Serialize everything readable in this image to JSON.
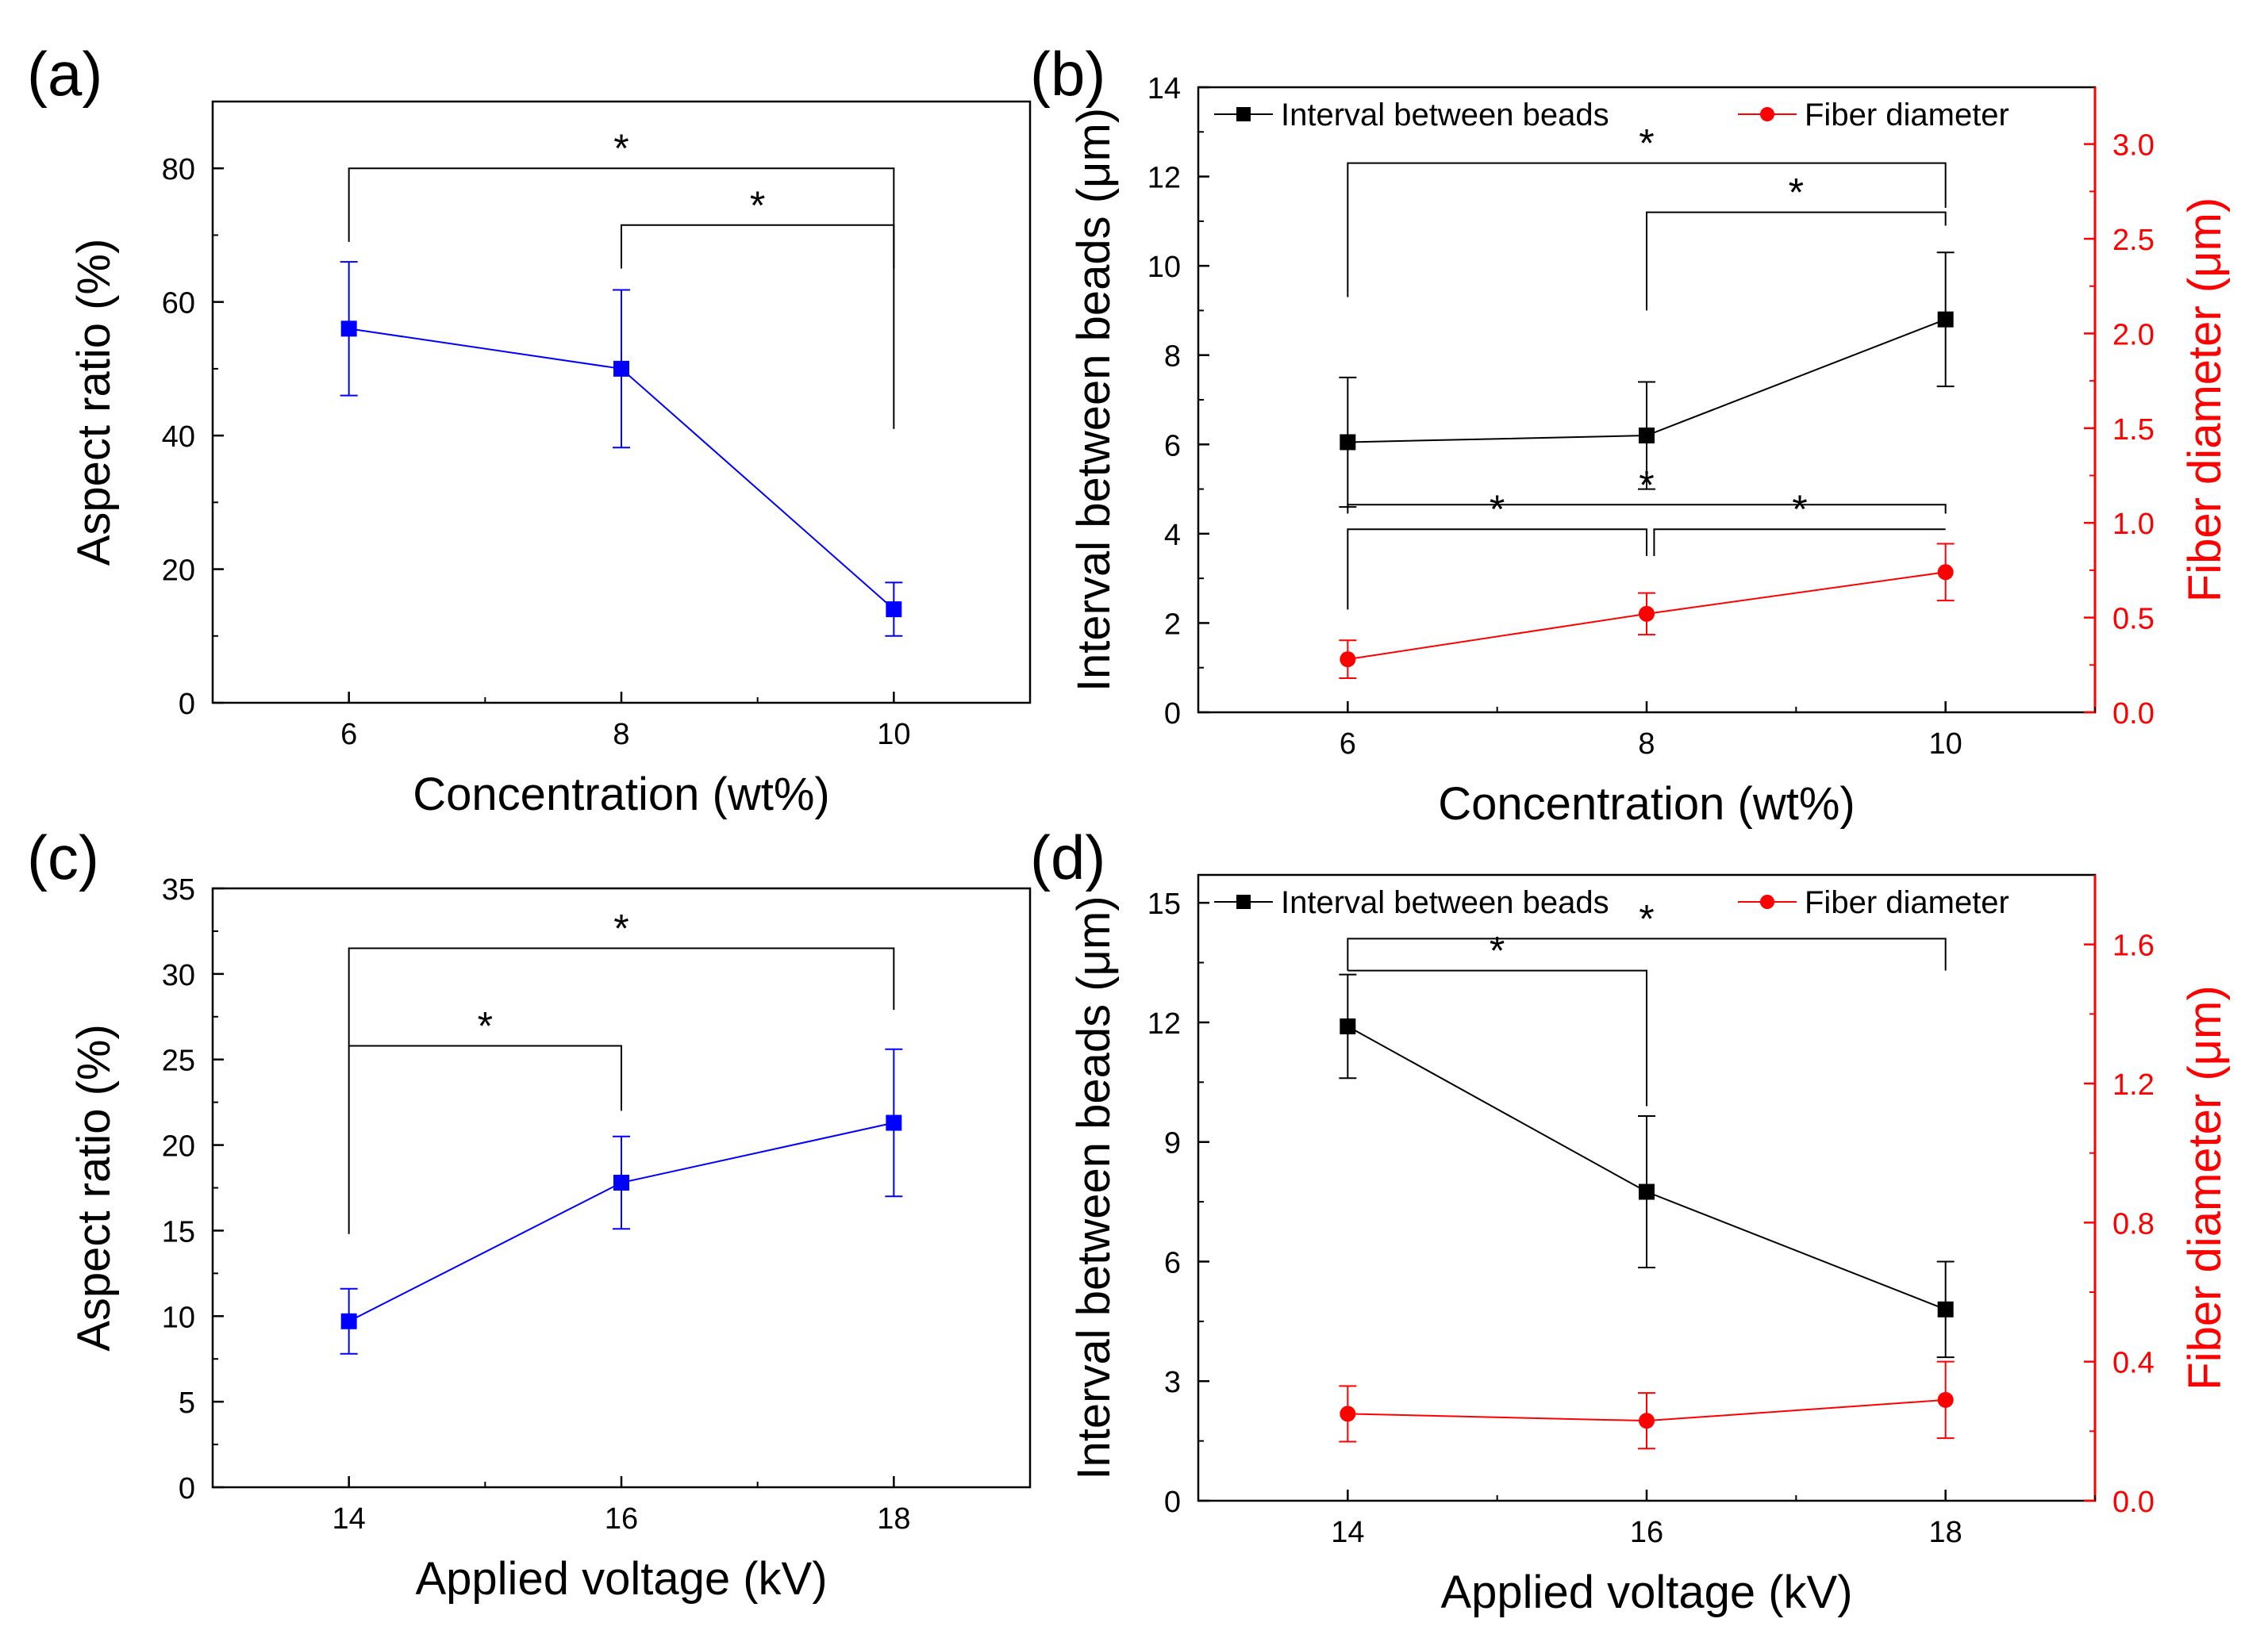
{
  "chart_data": [
    {
      "id": "a",
      "panel_label": "(a)",
      "type": "line",
      "x": [
        6,
        8,
        10
      ],
      "xlim": [
        5,
        11
      ],
      "xticks": [
        "6",
        "8",
        "10"
      ],
      "xlabel": "Concentration (wt%)",
      "left_axis": {
        "label": "Aspect ratio (%)",
        "ylim": [
          0,
          90
        ],
        "ticks": [
          "0",
          "20",
          "40",
          "60",
          "80"
        ],
        "color": "#000000"
      },
      "series": [
        {
          "name": "Aspect ratio",
          "axis": "left",
          "color": "#0000ff",
          "marker": "square",
          "values": [
            56,
            50,
            14
          ],
          "errors": [
            10,
            11.8,
            4
          ]
        }
      ],
      "significance": [
        {
          "from": 6,
          "to": 10,
          "axis": "left",
          "top": 80,
          "left_drop": 69,
          "right_drop": 41,
          "label": "*"
        },
        {
          "from": 8,
          "to": 10,
          "axis": "left",
          "top": 71.5,
          "left_drop": 65,
          "right_drop": 65,
          "label": "*"
        }
      ]
    },
    {
      "id": "b",
      "panel_label": "(b)",
      "type": "line",
      "x": [
        6,
        8,
        10
      ],
      "xlim": [
        5,
        11
      ],
      "xticks": [
        "6",
        "8",
        "10"
      ],
      "xlabel": "Concentration (wt%)",
      "left_axis": {
        "label": "Interval between beads (μm)",
        "ylim": [
          0,
          14
        ],
        "ticks": [
          "0",
          "2",
          "4",
          "6",
          "8",
          "10",
          "12",
          "14"
        ],
        "color": "#000000"
      },
      "right_axis": {
        "label": "Fiber diameter (μm)",
        "ylim": [
          0,
          3.3
        ],
        "ticks": [
          "0.0",
          "0.5",
          "1.0",
          "1.5",
          "2.0",
          "2.5",
          "3.0"
        ],
        "color": "#ff0000"
      },
      "legend": [
        {
          "name": "Interval between beads",
          "color": "#000000",
          "marker": "square"
        },
        {
          "name": "Fiber diameter",
          "color": "#ff0000",
          "marker": "circle"
        }
      ],
      "series": [
        {
          "name": "Interval between beads",
          "axis": "left",
          "color": "#000000",
          "marker": "square",
          "values": [
            6.05,
            6.2,
            8.8
          ],
          "errors": [
            1.45,
            1.2,
            1.5
          ]
        },
        {
          "name": "Fiber diameter",
          "axis": "right",
          "color": "#ff0000",
          "marker": "circle",
          "values": [
            0.28,
            0.52,
            0.74
          ],
          "errors": [
            0.1,
            0.11,
            0.15
          ]
        }
      ],
      "significance": [
        {
          "from": 6,
          "to": 10,
          "axis": "left",
          "top": 12.3,
          "left_drop": 9.3,
          "right_drop": 11.3,
          "label": "*"
        },
        {
          "from": 8,
          "to": 10,
          "axis": "left",
          "top": 11.2,
          "left_drop": 9,
          "right_drop": 10.9,
          "label": "*"
        },
        {
          "from": 6,
          "to": 10,
          "axis": "left",
          "top": 4.65,
          "left_drop": 4.45,
          "right_drop": 4.45,
          "label": "*"
        },
        {
          "from": 6,
          "to": 8,
          "axis": "left",
          "top": 4.1,
          "left_drop": 2.3,
          "right_drop": 3.5,
          "label": "*"
        },
        {
          "from": 8.05,
          "to": 10,
          "axis": "left",
          "top": 4.1,
          "left_drop": 3.5,
          "right_drop": 4.1,
          "label": "*"
        }
      ]
    },
    {
      "id": "c",
      "panel_label": "(c)",
      "type": "line",
      "x": [
        14,
        16,
        18
      ],
      "xlim": [
        13,
        19
      ],
      "xticks": [
        "14",
        "16",
        "18"
      ],
      "xlabel": "Applied voltage (kV)",
      "left_axis": {
        "label": "Aspect ratio (%)",
        "ylim": [
          0,
          35
        ],
        "ticks": [
          "0",
          "5",
          "10",
          "15",
          "20",
          "25",
          "30",
          "35"
        ],
        "color": "#000000"
      },
      "series": [
        {
          "name": "Aspect ratio",
          "axis": "left",
          "color": "#0000ff",
          "marker": "square",
          "values": [
            9.7,
            17.8,
            21.3
          ],
          "errors": [
            1.9,
            2.7,
            4.3
          ]
        }
      ],
      "significance": [
        {
          "from": 14,
          "to": 18,
          "axis": "left",
          "top": 31.5,
          "left_drop": 14.8,
          "right_drop": 27.9,
          "label": "*"
        },
        {
          "from": 14,
          "to": 16,
          "axis": "left",
          "top": 25.8,
          "left_drop": 25.8,
          "right_drop": 22,
          "label": "*"
        }
      ]
    },
    {
      "id": "d",
      "panel_label": "(d)",
      "type": "line",
      "x": [
        14,
        16,
        18
      ],
      "xlim": [
        13,
        19
      ],
      "xticks": [
        "14",
        "16",
        "18"
      ],
      "xlabel": "Applied voltage (kV)",
      "left_axis": {
        "label": "Interval between beads (μm)",
        "ylim": [
          0,
          15.7
        ],
        "ticks": [
          "0",
          "3",
          "6",
          "9",
          "12",
          "15"
        ],
        "color": "#000000"
      },
      "right_axis": {
        "label": "Fiber diameter (μm)",
        "ylim": [
          0,
          1.8
        ],
        "ticks": [
          "0.0",
          "0.4",
          "0.8",
          "1.2",
          "1.6"
        ],
        "color": "#ff0000"
      },
      "legend": [
        {
          "name": "Interval between beads",
          "color": "#000000",
          "marker": "square"
        },
        {
          "name": "Fiber diameter",
          "color": "#ff0000",
          "marker": "circle"
        }
      ],
      "series": [
        {
          "name": "Interval between beads",
          "axis": "left",
          "color": "#000000",
          "marker": "square",
          "values": [
            11.9,
            7.75,
            4.8
          ],
          "errors": [
            1.3,
            1.9,
            1.2
          ]
        },
        {
          "name": "Fiber diameter",
          "axis": "right",
          "color": "#ff0000",
          "marker": "circle",
          "values": [
            0.25,
            0.23,
            0.29
          ],
          "errors": [
            0.08,
            0.08,
            0.11
          ]
        }
      ],
      "significance": [
        {
          "from": 14,
          "to": 18,
          "axis": "left",
          "top": 14.1,
          "left_drop": 13.3,
          "right_drop": 13.3,
          "label": "*"
        },
        {
          "from": 14,
          "to": 16,
          "axis": "left",
          "top": 13.3,
          "left_drop": 13.3,
          "right_drop": 9.9,
          "label": "*"
        }
      ]
    }
  ]
}
